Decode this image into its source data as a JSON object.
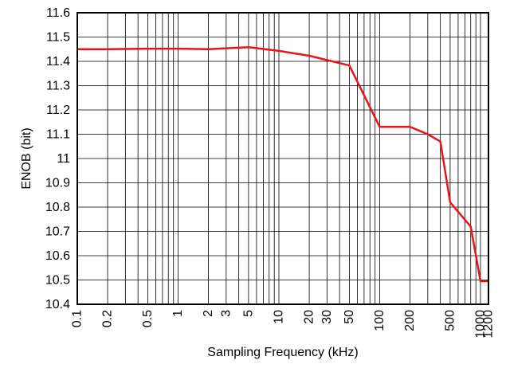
{
  "chart_data": {
    "type": "line",
    "xscale": "log",
    "xlim": [
      0.1,
      1200
    ],
    "ylim": [
      10.4,
      11.6
    ],
    "xlabel": "Sampling Frequency (kHz)",
    "ylabel": "ENOB (bit)",
    "grid": true,
    "x_tick_labels": [
      {
        "value": 0.1,
        "label": "0.1"
      },
      {
        "value": 0.2,
        "label": "0.2"
      },
      {
        "value": 0.5,
        "label": "0.5"
      },
      {
        "value": 1,
        "label": "1"
      },
      {
        "value": 2,
        "label": "2"
      },
      {
        "value": 3,
        "label": "3"
      },
      {
        "value": 5,
        "label": "5"
      },
      {
        "value": 10,
        "label": "10"
      },
      {
        "value": 20,
        "label": "20"
      },
      {
        "value": 30,
        "label": "30"
      },
      {
        "value": 50,
        "label": "50"
      },
      {
        "value": 100,
        "label": "100"
      },
      {
        "value": 200,
        "label": "200"
      },
      {
        "value": 500,
        "label": "500"
      },
      {
        "value": 1000,
        "label": "1000"
      },
      {
        "value": 1200,
        "label": "1200"
      }
    ],
    "y_ticks": [
      10.4,
      10.5,
      10.6,
      10.7,
      10.8,
      10.9,
      11,
      11.1,
      11.2,
      11.3,
      11.4,
      11.5,
      11.6
    ],
    "y_tick_labels": [
      "10.4",
      "10.5",
      "10.6",
      "10.7",
      "10.8",
      "10.9",
      "11",
      "11.1",
      "11.2",
      "11.3",
      "11.4",
      "11.5",
      "11.6"
    ],
    "series": [
      {
        "color": "#e8141c",
        "x": [
          0.1,
          0.2,
          0.5,
          1,
          2,
          5,
          10,
          20,
          50,
          100,
          200,
          300,
          400,
          500,
          800,
          1000,
          1200
        ],
        "y": [
          11.45,
          11.45,
          11.452,
          11.452,
          11.45,
          11.458,
          11.443,
          11.423,
          11.383,
          11.13,
          11.13,
          11.1,
          11.07,
          10.82,
          10.72,
          10.495,
          10.495
        ]
      }
    ]
  }
}
